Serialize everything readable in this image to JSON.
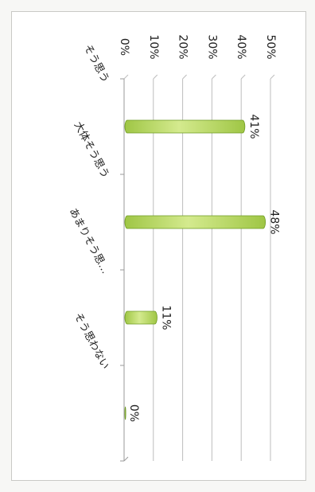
{
  "chart_data": {
    "type": "bar",
    "orientation": "horizontal",
    "title": "",
    "xlabel": "",
    "ylabel": "",
    "categories": [
      "そう思う",
      "大体そう思う",
      "あまりそう思…",
      "そう思わない"
    ],
    "values": [
      41,
      48,
      11,
      0
    ],
    "data_labels": [
      "41%",
      "48%",
      "11%",
      "0%"
    ],
    "axis": {
      "min": 0,
      "max": 50,
      "step": 10,
      "tick_labels": [
        "0%",
        "10%",
        "20%",
        "30%",
        "40%",
        "50%"
      ]
    },
    "grid": true,
    "legend": "none",
    "colors": {
      "bar": "#9fc645",
      "bar_highlight": "#d4ea8e",
      "bar_edge": "#6e9a22",
      "grid": "#bdbdbd",
      "axis": "#9a9a9a"
    }
  }
}
